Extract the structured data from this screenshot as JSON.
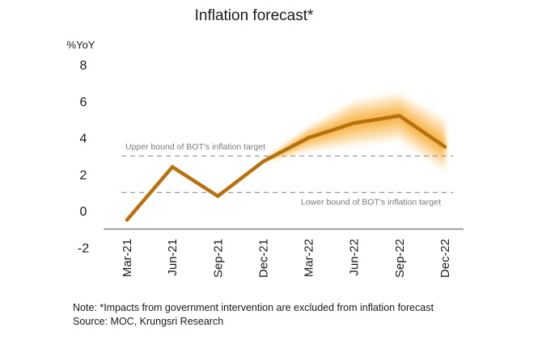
{
  "chart_data": {
    "type": "line",
    "title": "Inflation forecast*",
    "ylabel": "%YoY",
    "xlabel": "",
    "ylim": [
      -2,
      8
    ],
    "yticks": [
      8,
      6,
      4,
      2,
      0,
      -2
    ],
    "categories": [
      "Mar-21",
      "Jun-21",
      "Sep-21",
      "Dec-21",
      "Mar-22",
      "Jun-22",
      "Sep-22",
      "Dec-22"
    ],
    "series": [
      {
        "name": "Inflation",
        "values": [
          -0.5,
          2.4,
          0.8,
          2.7,
          4.0,
          4.8,
          5.2,
          3.5
        ],
        "color": "#B8710E"
      }
    ],
    "forecast_fan": {
      "start_index": 3,
      "upper": [
        2.7,
        4.6,
        6.0,
        6.4,
        5.0
      ],
      "lower": [
        2.7,
        3.3,
        3.6,
        3.9,
        2.2
      ],
      "color": "#F5A623"
    },
    "reference_lines": [
      {
        "name": "Upper bound of BOT's inflation target",
        "value": 3.0,
        "label_position": "left"
      },
      {
        "name": "Lower bound of BOT's inflation target",
        "value": 1.0,
        "label_position": "right"
      }
    ],
    "grid": false,
    "legend": "none"
  },
  "footer": {
    "note": "Note: *Impacts from government intervention are excluded from inflation forecast",
    "source": "Source:  MOC, Krungsri Research"
  }
}
